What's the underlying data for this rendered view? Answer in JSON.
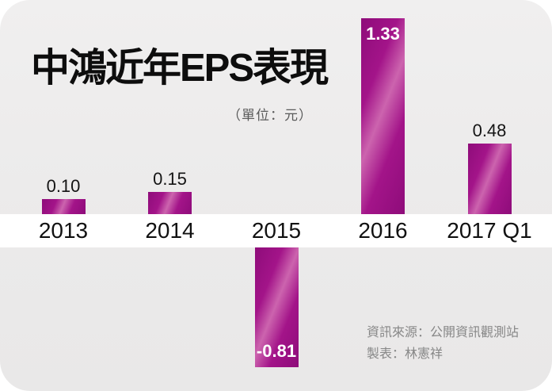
{
  "header": {
    "title": "中鴻近年EPS表現",
    "unit": "（單位：元）"
  },
  "chart_data": {
    "type": "bar",
    "title": "中鴻近年EPS表現",
    "unit_label": "（單位：元）",
    "categories": [
      "2013",
      "2014",
      "2015",
      "2016",
      "2017 Q1"
    ],
    "values": [
      0.1,
      0.15,
      -0.81,
      1.33,
      0.48
    ],
    "value_labels": [
      "0.10",
      "0.15",
      "-0.81",
      "1.33",
      "0.48"
    ],
    "label_positions": [
      "above",
      "above",
      "inside-bottom",
      "inside-top",
      "above"
    ],
    "ylim": [
      -0.81,
      1.33
    ],
    "grid": "off",
    "legend": "none",
    "zero_axis_style": "white horizontal band containing category labels",
    "colors": {
      "bar_dark": "#8e0c7a",
      "bar_mid": "#a31489",
      "bar_highlight": "#cc64ae",
      "positive_label": "#141414",
      "inside_label": "#ffffff"
    }
  },
  "footer": {
    "source": "資訊來源：公開資訊觀測站",
    "credit": "製表：林憲祥"
  }
}
